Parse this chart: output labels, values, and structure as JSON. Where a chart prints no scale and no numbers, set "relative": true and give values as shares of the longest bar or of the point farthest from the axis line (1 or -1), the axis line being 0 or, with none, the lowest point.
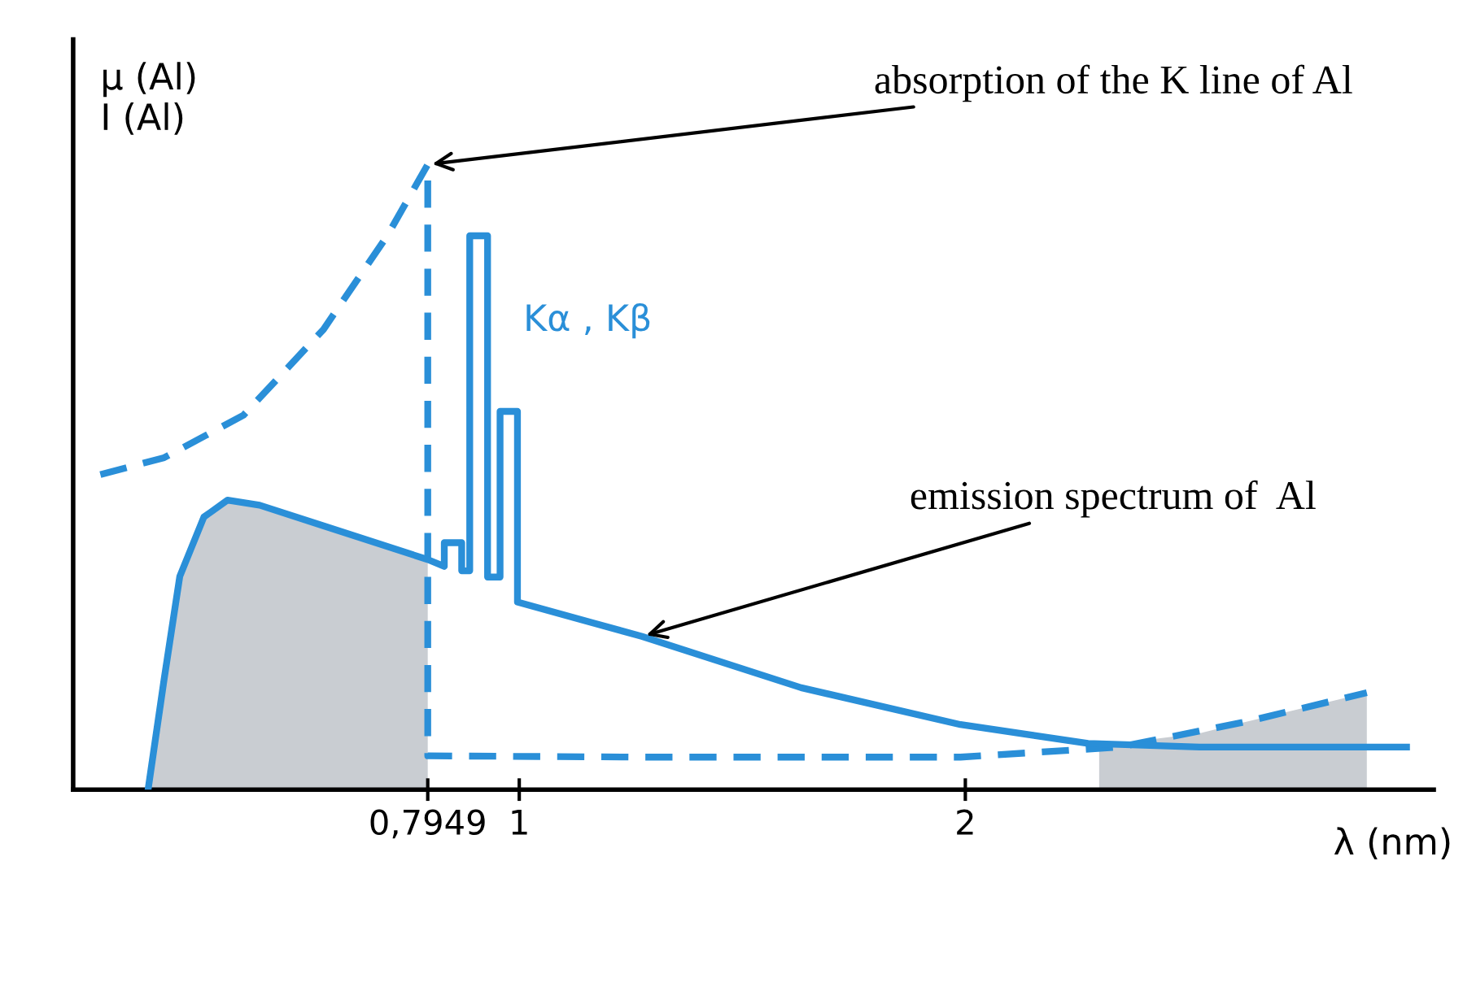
{
  "chart_data": {
    "type": "line",
    "relative": true,
    "xlabel": "λ (nm)",
    "ylabel": "μ (Al)\nI (Al)",
    "xlim": [
      0,
      3.05
    ],
    "xticks": [
      {
        "value": 0.7949,
        "label": "0,7949"
      },
      1,
      2
    ],
    "grid": false,
    "legend": false,
    "marker": "none",
    "annotations": [
      {
        "text": "absorption of the K line of Al",
        "x": 0.7949,
        "y": 1.0
      },
      {
        "text": "Kα , Kβ",
        "x": 0.929,
        "y": 0.75
      },
      {
        "text": "emission spectrum of  Al",
        "x": 1.275,
        "y": 0.245
      }
    ],
    "series": [
      {
        "type": "area",
        "color": "#c9cdd2",
        "x": [
          0.168,
          0.204,
          0.239,
          0.293,
          0.346,
          0.418,
          0.561,
          0.7949
        ],
        "values": [
          0,
          0.177,
          0.341,
          0.436,
          0.463,
          0.455,
          0.422,
          0.368
        ]
      },
      {
        "type": "area",
        "color": "#c9cdd2",
        "x": [
          2.3,
          2.346,
          2.525,
          2.632,
          2.9
        ],
        "values": [
          0.07,
          0.074,
          0.09,
          0.109,
          0.155
        ]
      },
      {
        "line_style": "dashed",
        "color": "#2a8fd8",
        "x": [
          0.061,
          0.204,
          0.382,
          0.561,
          0.704,
          0.7949,
          0.7949,
          1.275,
          1.989,
          2.346,
          2.632,
          2.9
        ],
        "values": [
          0.504,
          0.531,
          0.599,
          0.736,
          0.886,
          1.0,
          0.054,
          0.052,
          0.052,
          0.068,
          0.109,
          0.155
        ]
      },
      {
        "line_style": "solid",
        "color": "#2a8fd8",
        "x": [
          0.168,
          0.204,
          0.239,
          0.293,
          0.346,
          0.418,
          0.561,
          0.7949,
          0.832,
          0.832,
          0.871,
          0.871,
          0.889,
          0.889,
          0.929,
          0.929,
          0.957,
          0.957,
          0.996,
          0.996,
          1.275,
          1.632,
          1.989,
          2.275,
          2.525,
          2.989
        ],
        "values": [
          0,
          0.177,
          0.341,
          0.436,
          0.463,
          0.455,
          0.422,
          0.368,
          0.357,
          0.395,
          0.395,
          0.35,
          0.35,
          0.886,
          0.886,
          0.34,
          0.34,
          0.605,
          0.605,
          0.3,
          0.245,
          0.163,
          0.104,
          0.074,
          0.068,
          0.068
        ]
      }
    ]
  }
}
